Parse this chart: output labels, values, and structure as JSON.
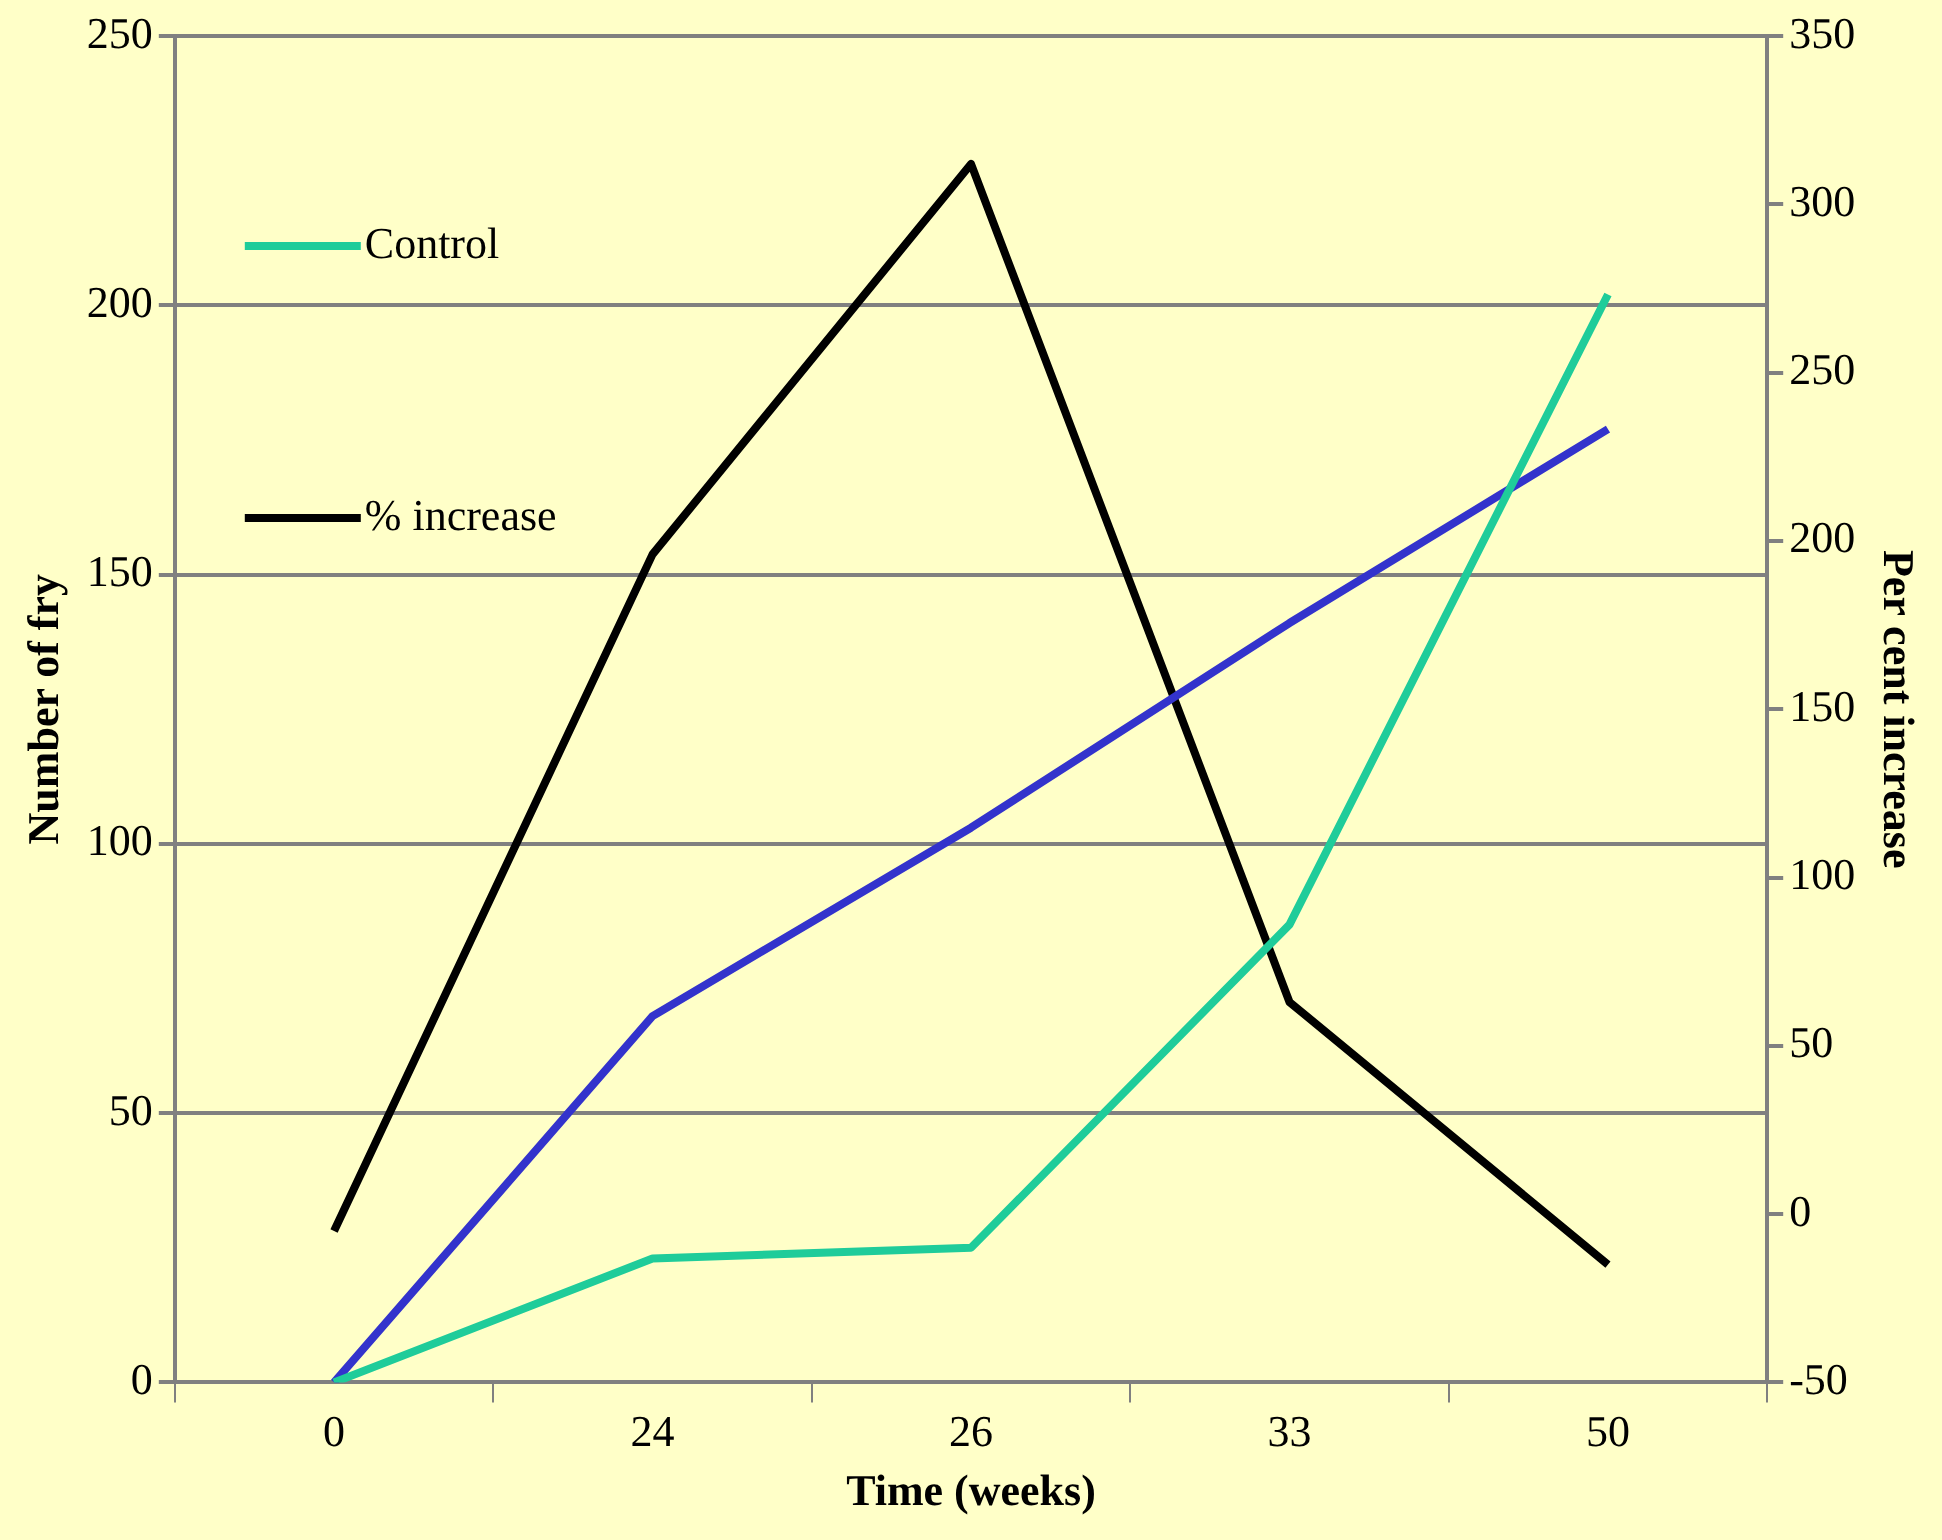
{
  "chart_data": {
    "type": "line",
    "xlabel": "Time (weeks)",
    "ylabel": "Number of fry",
    "y2label": "Per cent increase",
    "categories": [
      "0",
      "24",
      "26",
      "33",
      "50"
    ],
    "series": [
      {
        "name": "Control",
        "color": "#1fcc9a",
        "values": [
          0,
          23,
          25,
          85,
          202
        ]
      },
      {
        "color": "#3333cc",
        "values": [
          0,
          68,
          103,
          141,
          177
        ]
      },
      {
        "name": "% increase",
        "color": "#000000",
        "axis": "y2",
        "values": [
          -5,
          196,
          312,
          63,
          -15
        ]
      }
    ],
    "ylim": [
      0,
      250
    ],
    "yticks": [
      0,
      50,
      100,
      150,
      200,
      250
    ],
    "y2lim": [
      -50,
      350
    ],
    "y2ticks": [
      -50,
      0,
      50,
      100,
      150,
      200,
      250,
      300,
      350
    ],
    "grid": "y",
    "legend": "top left",
    "marker": "none",
    "line_style": "solid"
  }
}
